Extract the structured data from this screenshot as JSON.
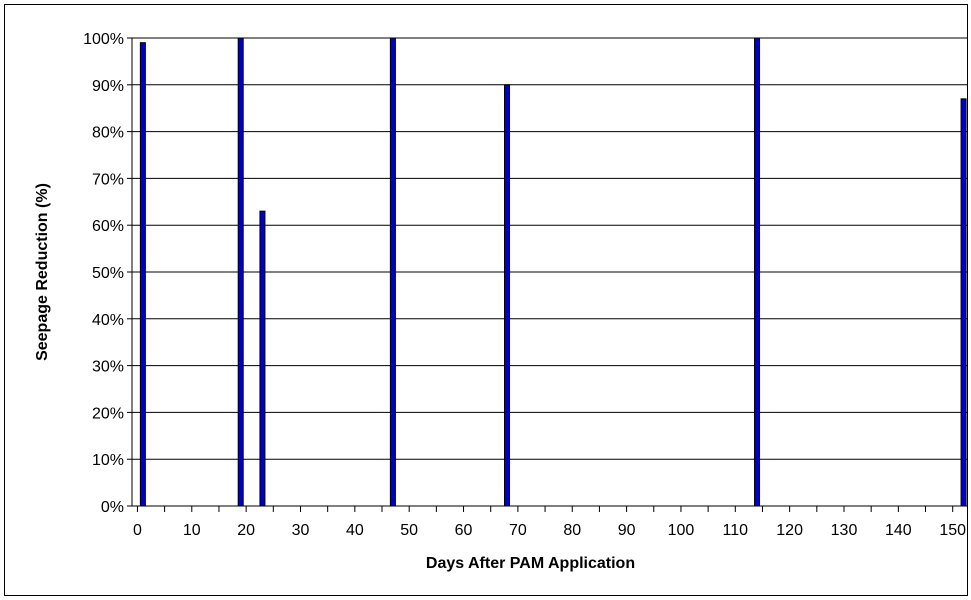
{
  "chart_data": {
    "type": "bar",
    "title": "",
    "xlabel": "Days After PAM Application",
    "ylabel": "Seepage Reduction (%)",
    "x": [
      1,
      19,
      23,
      47,
      68,
      114,
      152
    ],
    "values": [
      99,
      100,
      63,
      100,
      90,
      100,
      87
    ],
    "xlim": [
      -1,
      153
    ],
    "ylim": [
      0,
      100
    ],
    "x_ticks": [
      0,
      10,
      20,
      30,
      40,
      50,
      60,
      70,
      80,
      90,
      100,
      110,
      120,
      130,
      140,
      150
    ],
    "y_ticks": [
      0,
      10,
      20,
      30,
      40,
      50,
      60,
      70,
      80,
      90,
      100
    ],
    "y_tick_format": "percent",
    "grid": "horizontal",
    "legend": "none",
    "bar_color": "#0000CC",
    "bar_edge_color": "#000000"
  }
}
